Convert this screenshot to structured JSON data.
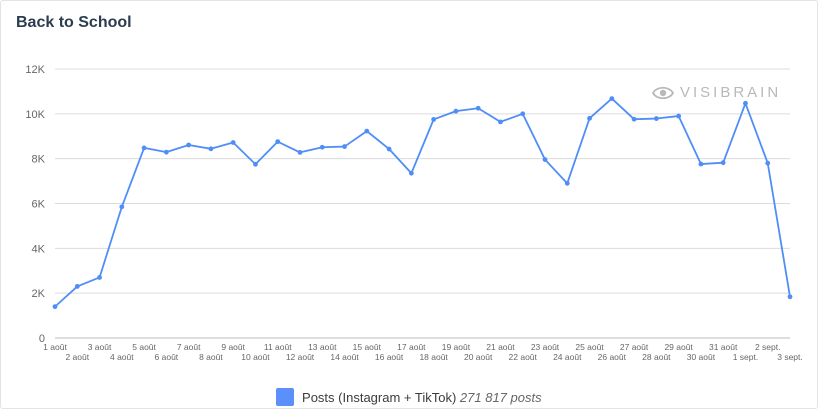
{
  "header": {
    "title": "Back to School"
  },
  "watermark": {
    "text": "VISIBRAIN",
    "icon": "eye-icon"
  },
  "legend": {
    "label": "Posts (Instagram + TikTok)",
    "count": "271 817 posts"
  },
  "colors": {
    "line": "#4f8ef7",
    "swatch": "#5b8ff9",
    "grid": "#dcdcdc",
    "axis_text": "#666666",
    "title": "#2b3d4f"
  },
  "chart_data": {
    "type": "line",
    "title": "Back to School",
    "xlabel": "",
    "ylabel": "",
    "ylim": [
      0,
      12000
    ],
    "yticks": [
      0,
      2000,
      4000,
      6000,
      8000,
      10000,
      12000
    ],
    "ytick_labels": [
      "0",
      "2K",
      "4K",
      "6K",
      "8K",
      "10K",
      "12K"
    ],
    "grid": true,
    "legend_position": "bottom",
    "categories": [
      "1 août",
      "2 août",
      "3 août",
      "4 août",
      "5 août",
      "6 août",
      "7 août",
      "8 août",
      "9 août",
      "10 août",
      "11 août",
      "12 août",
      "13 août",
      "14 août",
      "15 août",
      "16 août",
      "17 août",
      "18 août",
      "19 août",
      "20 août",
      "21 août",
      "22 août",
      "23 août",
      "24 août",
      "25 août",
      "26 août",
      "27 août",
      "28 août",
      "29 août",
      "30 août",
      "31 août",
      "1 sept.",
      "2 sept.",
      "3 sept."
    ],
    "series": [
      {
        "name": "Posts (Instagram + TikTok)",
        "values": [
          1400,
          2300,
          2700,
          5850,
          8480,
          8290,
          8610,
          8440,
          8720,
          7750,
          8760,
          8280,
          8510,
          8540,
          9230,
          8430,
          7350,
          9750,
          10120,
          10250,
          9640,
          10000,
          7960,
          6900,
          9800,
          10680,
          9760,
          9790,
          9900,
          7760,
          7820,
          10470,
          7800,
          1840
        ]
      }
    ]
  }
}
